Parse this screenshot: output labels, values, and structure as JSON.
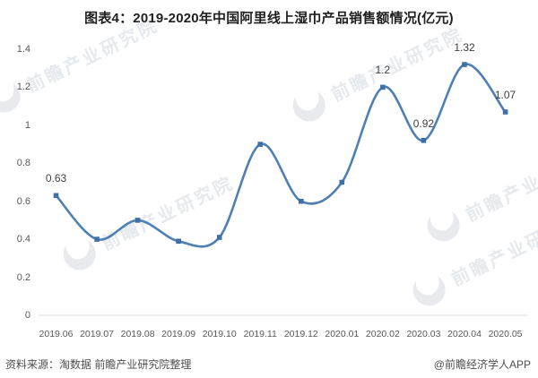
{
  "title": "图表4：2019-2020年中国阿里线上湿巾产品销售额情况(亿元)",
  "footer": {
    "source": "资料来源：淘数据 前瞻产业研究院整理",
    "credit": "@前瞻经济学人APP"
  },
  "watermark": {
    "text": "前瞻产业研究院"
  },
  "chart_data": {
    "type": "line",
    "smooth": true,
    "marker": "square",
    "grid": false,
    "legend": "none",
    "title": "图表4：2019-2020年中国阿里线上湿巾产品销售额情况(亿元)",
    "xlabel": "",
    "ylabel": "",
    "ylim": [
      0,
      1.4
    ],
    "categories": [
      "2019.06",
      "2019.07",
      "2019.08",
      "2019.09",
      "2019.10",
      "2019.11",
      "2019.12",
      "2020.01",
      "2020.02",
      "2020.03",
      "2020.04",
      "2020.05"
    ],
    "values": [
      0.63,
      0.4,
      0.5,
      0.39,
      0.41,
      0.9,
      0.6,
      0.7,
      1.2,
      0.92,
      1.32,
      1.07
    ],
    "data_labels": {
      "0": "0.63",
      "8": "1.2",
      "9": "0.92",
      "10": "1.32",
      "11": "1.07"
    },
    "y_ticks": [
      {
        "value": 0,
        "label": "0"
      },
      {
        "value": 0.2,
        "label": "0.2"
      },
      {
        "value": 0.4,
        "label": "0.4"
      },
      {
        "value": 0.6,
        "label": "0.6"
      },
      {
        "value": 0.8,
        "label": "0.8"
      },
      {
        "value": 1,
        "label": "1"
      },
      {
        "value": 1.2,
        "label": "1.2"
      },
      {
        "value": 1.4,
        "label": "1.4"
      }
    ],
    "line_color": "#4e7fb5",
    "marker_color": "#3e6fa8",
    "axis_color": "#d9d9d9",
    "tick_color": "#595959",
    "data_label_color": "#404040"
  }
}
